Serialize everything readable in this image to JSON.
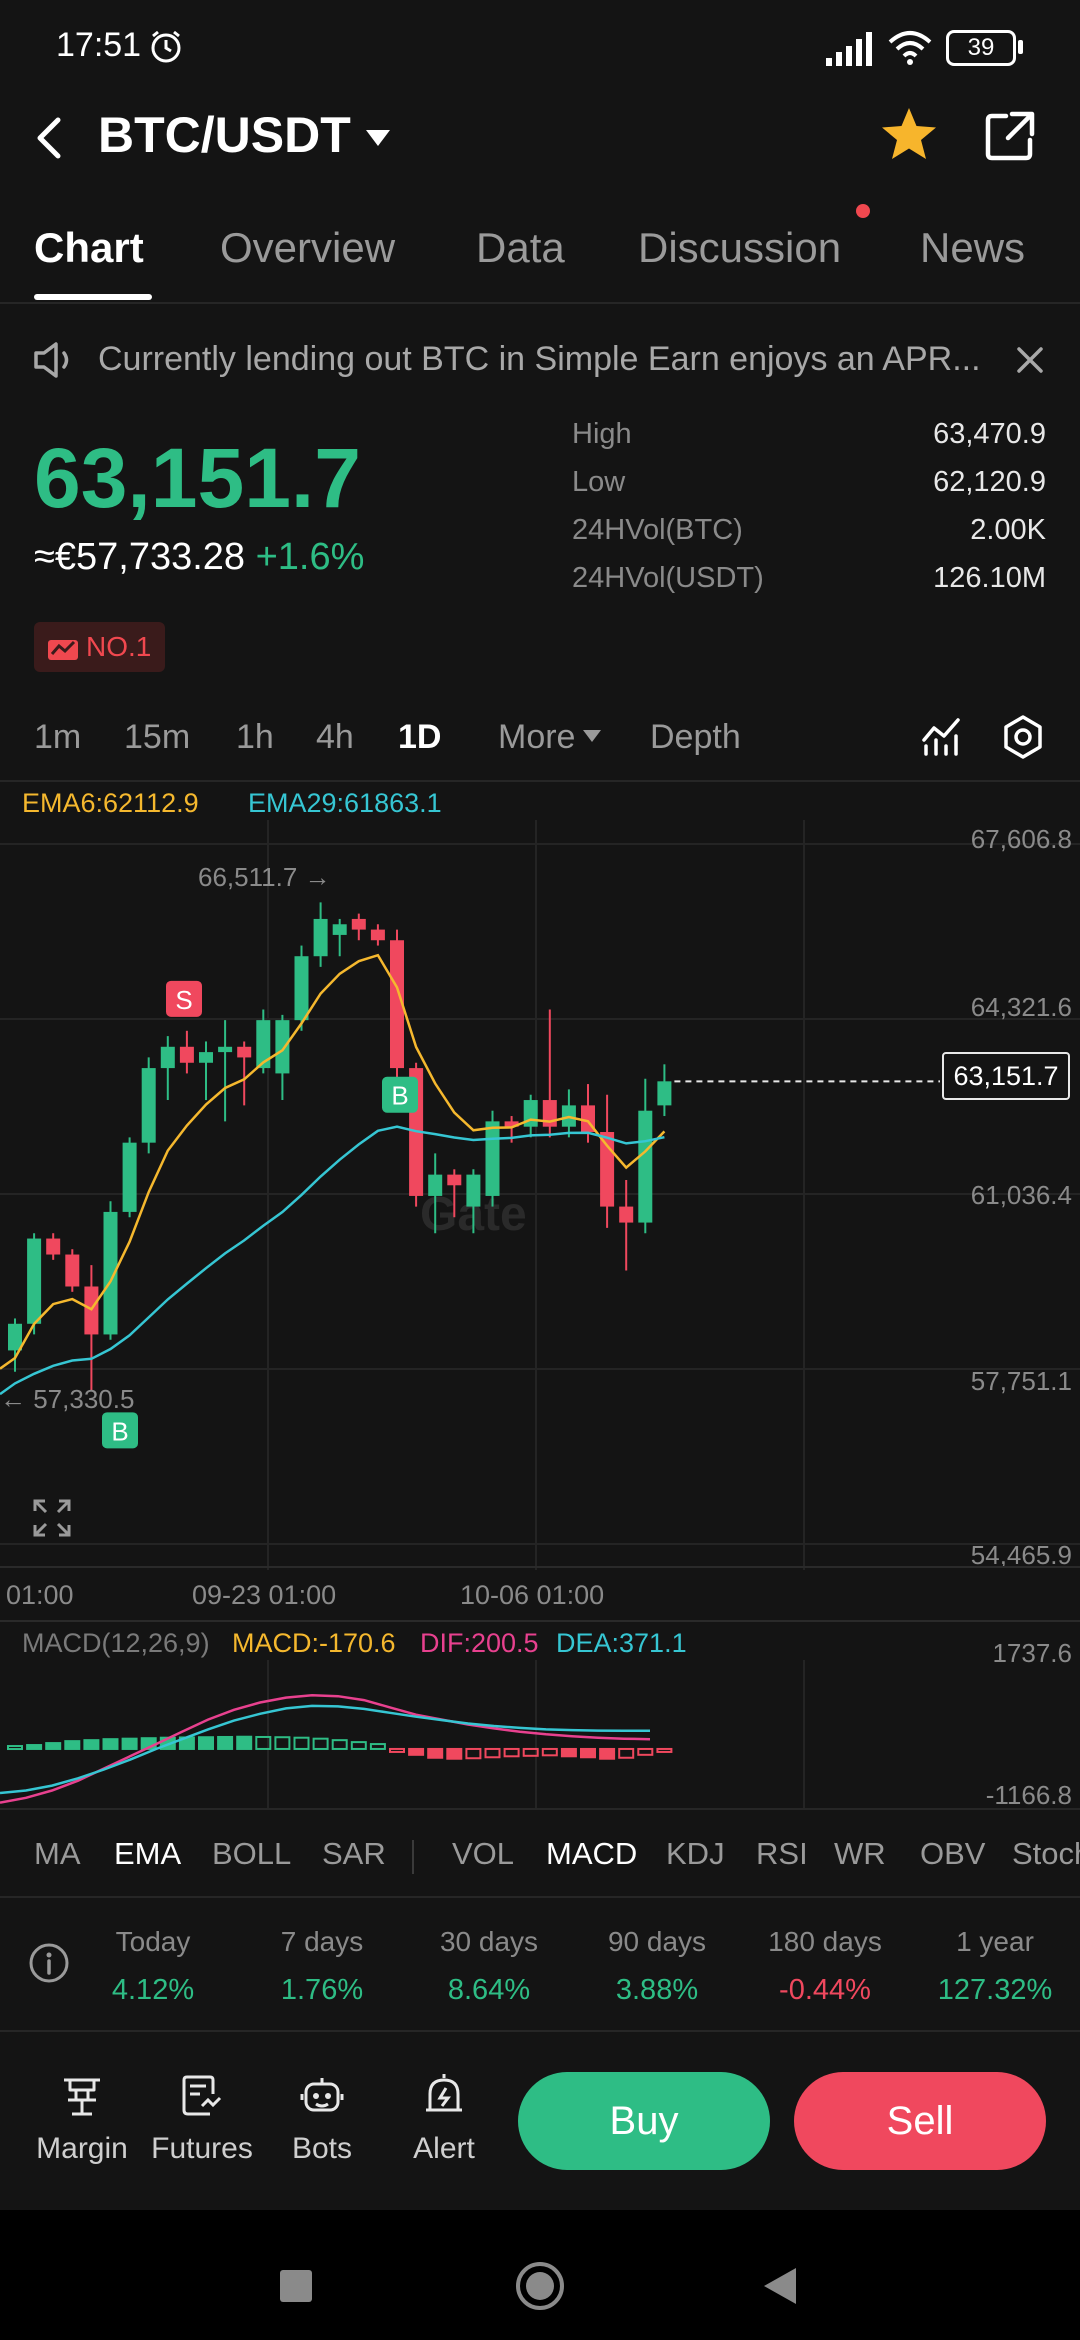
{
  "status_bar": {
    "time": "17:51",
    "battery": "39"
  },
  "header": {
    "pair": "BTC/USDT"
  },
  "tabs": [
    {
      "label": "Chart"
    },
    {
      "label": "Overview"
    },
    {
      "label": "Data"
    },
    {
      "label": "Discussion"
    },
    {
      "label": "News"
    }
  ],
  "announcement": {
    "text": "Currently lending out BTC in Simple Earn enjoys an APR..."
  },
  "price": {
    "last": "63,151.7",
    "fiat": "≈€57,733.28",
    "change": "+1.6%",
    "rank_badge": "NO.1"
  },
  "stats": [
    {
      "label": "High",
      "value": "63,470.9"
    },
    {
      "label": "Low",
      "value": "62,120.9"
    },
    {
      "label": "24HVol(BTC)",
      "value": "2.00K"
    },
    {
      "label": "24HVol(USDT)",
      "value": "126.10M"
    }
  ],
  "intervals": [
    "1m",
    "15m",
    "1h",
    "4h",
    "1D",
    "More",
    "Depth"
  ],
  "chart": {
    "ema6": "EMA6:62112.9",
    "ema29": "EMA29:61863.1",
    "axis_labels": [
      "67,606.8",
      "64,321.6",
      "61,036.4",
      "57,751.1",
      "54,465.9"
    ],
    "current_price_tag": "63,151.7",
    "high_marker": "66,511.7 →",
    "low_marker": "← 57,330.5",
    "time_labels": [
      "01:00",
      "09-23 01:00",
      "10-06 01:00"
    ],
    "markers": [
      "S",
      "B",
      "B"
    ],
    "watermark": "Gate"
  },
  "chart_data": {
    "type": "candlestick",
    "ylim": [
      54465.9,
      67606.8
    ],
    "y_ticks": [
      67606.8,
      64321.6,
      61036.4,
      57751.1,
      54465.9
    ],
    "x_ticks": [
      "01:00",
      "09-23 01:00",
      "10-06 01:00"
    ],
    "last_price": 63151.7,
    "candles": [
      {
        "o": 58100,
        "h": 58700,
        "l": 57700,
        "c": 58600
      },
      {
        "o": 58600,
        "h": 60300,
        "l": 58400,
        "c": 60200
      },
      {
        "o": 60200,
        "h": 60300,
        "l": 59800,
        "c": 59900
      },
      {
        "o": 59900,
        "h": 60000,
        "l": 59200,
        "c": 59300
      },
      {
        "o": 59300,
        "h": 59700,
        "l": 57330.5,
        "c": 58400
      },
      {
        "o": 58400,
        "h": 60900,
        "l": 58300,
        "c": 60700
      },
      {
        "o": 60700,
        "h": 62100,
        "l": 60600,
        "c": 62000
      },
      {
        "o": 62000,
        "h": 63600,
        "l": 61800,
        "c": 63400
      },
      {
        "o": 63400,
        "h": 64000,
        "l": 62800,
        "c": 63800
      },
      {
        "o": 63800,
        "h": 64100,
        "l": 63300,
        "c": 63500
      },
      {
        "o": 63500,
        "h": 63900,
        "l": 62800,
        "c": 63700
      },
      {
        "o": 63700,
        "h": 64300,
        "l": 62400,
        "c": 63800
      },
      {
        "o": 63800,
        "h": 63900,
        "l": 62700,
        "c": 63600
      },
      {
        "o": 63400,
        "h": 64500,
        "l": 63300,
        "c": 64300
      },
      {
        "o": 63300,
        "h": 64400,
        "l": 62800,
        "c": 64300
      },
      {
        "o": 64300,
        "h": 65700,
        "l": 64100,
        "c": 65500
      },
      {
        "o": 65500,
        "h": 66511.7,
        "l": 65300,
        "c": 66200
      },
      {
        "o": 65900,
        "h": 66200,
        "l": 65500,
        "c": 66100
      },
      {
        "o": 66200,
        "h": 66300,
        "l": 65800,
        "c": 66000
      },
      {
        "o": 66000,
        "h": 66100,
        "l": 65700,
        "c": 65800
      },
      {
        "o": 65800,
        "h": 66000,
        "l": 63200,
        "c": 63400
      },
      {
        "o": 63400,
        "h": 63500,
        "l": 60800,
        "c": 61000
      },
      {
        "o": 61000,
        "h": 61800,
        "l": 60300,
        "c": 61400
      },
      {
        "o": 61400,
        "h": 61500,
        "l": 60600,
        "c": 61200
      },
      {
        "o": 60800,
        "h": 61500,
        "l": 60300,
        "c": 61400
      },
      {
        "o": 61000,
        "h": 62600,
        "l": 60800,
        "c": 62400
      },
      {
        "o": 62400,
        "h": 62500,
        "l": 62000,
        "c": 62300
      },
      {
        "o": 62300,
        "h": 62900,
        "l": 62100,
        "c": 62800
      },
      {
        "o": 62800,
        "h": 64500,
        "l": 62100,
        "c": 62300
      },
      {
        "o": 62300,
        "h": 63000,
        "l": 62100,
        "c": 62700
      },
      {
        "o": 62700,
        "h": 63100,
        "l": 62000,
        "c": 62200
      },
      {
        "o": 62200,
        "h": 62900,
        "l": 60400,
        "c": 60800
      },
      {
        "o": 60800,
        "h": 61300,
        "l": 59600,
        "c": 60500
      },
      {
        "o": 60500,
        "h": 63200,
        "l": 60300,
        "c": 62600
      },
      {
        "o": 62700,
        "h": 63470.9,
        "l": 62500,
        "c": 63151.7
      }
    ],
    "ema6_last": 62112.9,
    "ema29_last": 61863.1,
    "macd": {
      "params": "MACD(12,26,9)",
      "macd": -170.6,
      "dif": 200.5,
      "dea": 371.1,
      "ylim": [
        -1166.8,
        1737.6
      ]
    }
  },
  "macd_legend": {
    "name": "MACD(12,26,9)",
    "macd": "MACD:-170.6",
    "dif": "DIF:200.5",
    "dea": "DEA:371.1",
    "axis_top": "1737.6",
    "axis_bottom": "-1166.8"
  },
  "indicators": [
    "MA",
    "EMA",
    "BOLL",
    "SAR",
    "VOL",
    "MACD",
    "KDJ",
    "RSI",
    "WR",
    "OBV",
    "Stoch"
  ],
  "performance": [
    {
      "label": "Today",
      "value": "4.12%"
    },
    {
      "label": "7 days",
      "value": "1.76%"
    },
    {
      "label": "30 days",
      "value": "8.64%"
    },
    {
      "label": "90 days",
      "value": "3.88%"
    },
    {
      "label": "180 days",
      "value": "-0.44%"
    },
    {
      "label": "1 year",
      "value": "127.32%"
    }
  ],
  "actions": [
    "Margin",
    "Futures",
    "Bots",
    "Alert"
  ],
  "buttons": {
    "buy": "Buy",
    "sell": "Sell"
  },
  "colors": {
    "up": "#2ebd85",
    "down": "#f0485e",
    "ema6": "#f5b82e",
    "ema29": "#36c6d3",
    "dif": "#e8418f",
    "accent_star": "#f7b52c"
  }
}
